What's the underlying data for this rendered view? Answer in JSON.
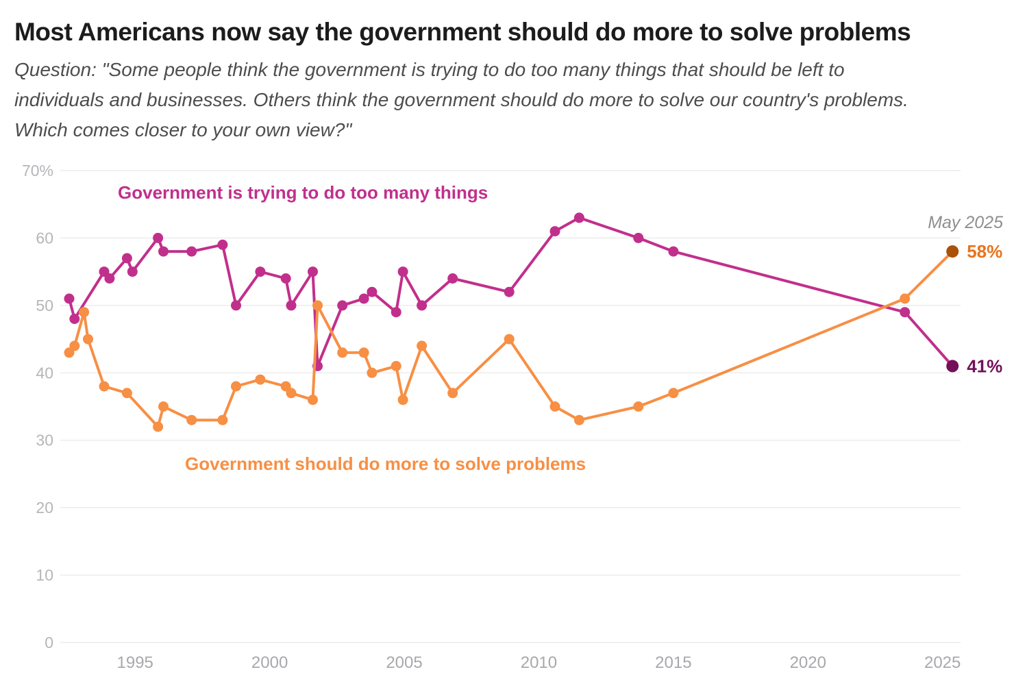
{
  "header": {
    "title": "Most Americans now say the government should do more to solve problems",
    "subtitle": "Question: \"Some people think the government is trying to do too many things that should be left to individuals and businesses. Others think the government should do more to solve our country's problems. Which comes closer to your own view?\""
  },
  "chart_data": {
    "type": "line",
    "title": "Most Americans now say the government should do more to solve problems",
    "xlabel": "",
    "ylabel": "",
    "x_range": [
      1992.22,
      2025.67
    ],
    "y_range": [
      0,
      70
    ],
    "grid": "horizontal",
    "x_ticks": [
      {
        "value": 1995,
        "label": "1995"
      },
      {
        "value": 2000,
        "label": "2000"
      },
      {
        "value": 2005,
        "label": "2005"
      },
      {
        "value": 2010,
        "label": "2010"
      },
      {
        "value": 2015,
        "label": "2015"
      },
      {
        "value": 2020,
        "label": "2020"
      },
      {
        "value": 2025,
        "label": "2025"
      }
    ],
    "y_ticks": [
      {
        "value": 70,
        "label": "70%"
      },
      {
        "value": 60,
        "label": "60"
      },
      {
        "value": 50,
        "label": "50"
      },
      {
        "value": 40,
        "label": "40"
      },
      {
        "value": 30,
        "label": "30"
      },
      {
        "value": 20,
        "label": "20"
      },
      {
        "value": 10,
        "label": "10"
      },
      {
        "value": 0,
        "label": "0"
      }
    ],
    "annotation": {
      "text": "May 2025",
      "color": "#8e8e92"
    },
    "series": [
      {
        "name": "Government is trying to do too many things",
        "color": "#c12f8c",
        "end_dot_color": "#731058",
        "end_label": "41%",
        "end_label_color": "#731058",
        "points": [
          [
            1992.55,
            51
          ],
          [
            1992.75,
            48
          ],
          [
            1993.85,
            55
          ],
          [
            1994.05,
            54
          ],
          [
            1994.7,
            57
          ],
          [
            1994.9,
            55
          ],
          [
            1995.85,
            60
          ],
          [
            1996.05,
            58
          ],
          [
            1997.1,
            58
          ],
          [
            1998.25,
            59
          ],
          [
            1998.75,
            50
          ],
          [
            1999.65,
            55
          ],
          [
            2000.6,
            54
          ],
          [
            2000.8,
            50
          ],
          [
            2001.6,
            55
          ],
          [
            2001.78,
            41
          ],
          [
            2002.7,
            50
          ],
          [
            2003.5,
            51
          ],
          [
            2003.8,
            52
          ],
          [
            2004.7,
            49
          ],
          [
            2004.95,
            55
          ],
          [
            2005.65,
            50
          ],
          [
            2006.8,
            54
          ],
          [
            2008.9,
            52
          ],
          [
            2010.6,
            61
          ],
          [
            2011.5,
            63
          ],
          [
            2013.7,
            60
          ],
          [
            2015.0,
            58
          ],
          [
            2023.6,
            49
          ],
          [
            2025.37,
            41
          ]
        ]
      },
      {
        "name": "Government should do more to solve problems",
        "color": "#f78f44",
        "end_dot_color": "#aa5208",
        "end_label": "58%",
        "end_label_color": "#e9731c",
        "points": [
          [
            1992.55,
            43
          ],
          [
            1992.75,
            44
          ],
          [
            1993.1,
            49
          ],
          [
            1993.25,
            45
          ],
          [
            1993.85,
            38
          ],
          [
            1994.7,
            37
          ],
          [
            1995.85,
            32
          ],
          [
            1996.05,
            35
          ],
          [
            1997.1,
            33
          ],
          [
            1998.25,
            33
          ],
          [
            1998.75,
            38
          ],
          [
            1999.65,
            39
          ],
          [
            2000.6,
            38
          ],
          [
            2000.8,
            37
          ],
          [
            2001.6,
            36
          ],
          [
            2001.78,
            50
          ],
          [
            2002.7,
            43
          ],
          [
            2003.5,
            43
          ],
          [
            2003.8,
            40
          ],
          [
            2004.7,
            41
          ],
          [
            2004.95,
            36
          ],
          [
            2005.65,
            44
          ],
          [
            2006.8,
            37
          ],
          [
            2008.9,
            45
          ],
          [
            2010.6,
            35
          ],
          [
            2011.5,
            33
          ],
          [
            2013.7,
            35
          ],
          [
            2015.0,
            37
          ],
          [
            2023.6,
            51
          ],
          [
            2025.37,
            58
          ]
        ]
      }
    ]
  },
  "style": {
    "gridline_color": "#ececec",
    "y_tick_color": "#b6b6ba",
    "x_tick_color": "#a8a8ac"
  }
}
